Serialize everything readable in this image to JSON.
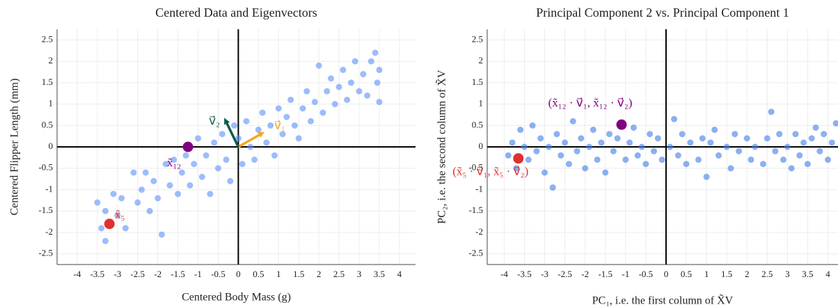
{
  "chart_data": [
    {
      "type": "scatter",
      "title": "Centered Data and Eigenvectors",
      "x_label": "Centered Body Mass (g)",
      "y_label": "Centered Flipper Length (mm)",
      "xlim": [
        -4.5,
        4.4
      ],
      "ylim": [
        -2.75,
        2.75
      ],
      "xticks": [
        -4,
        -3.5,
        -3,
        -2.5,
        -2,
        -1.5,
        -1,
        -0.5,
        0,
        0.5,
        1,
        1.5,
        2,
        2.5,
        3,
        3.5,
        4
      ],
      "yticks": [
        -2.5,
        -2,
        -1.5,
        -1,
        -0.5,
        0,
        0.5,
        1,
        1.5,
        2,
        2.5
      ],
      "grid": true,
      "color": "#5b8ff9",
      "x": [
        -3.5,
        -3.4,
        -3.3,
        -3.3,
        -3.1,
        -3.0,
        -2.9,
        -2.8,
        -2.6,
        -2.5,
        -2.4,
        -2.3,
        -2.2,
        -2.1,
        -2.0,
        -1.9,
        -1.8,
        -1.7,
        -1.6,
        -1.5,
        -1.4,
        -1.3,
        -1.2,
        -1.1,
        -1.0,
        -0.9,
        -0.8,
        -0.7,
        -0.6,
        -0.5,
        -0.4,
        -0.3,
        -0.2,
        -0.1,
        0.0,
        0.1,
        0.2,
        0.3,
        0.4,
        0.5,
        0.6,
        0.7,
        0.8,
        0.9,
        1.0,
        1.1,
        1.2,
        1.3,
        1.4,
        1.5,
        1.6,
        1.7,
        1.8,
        1.9,
        2.0,
        2.1,
        2.2,
        2.3,
        2.4,
        2.5,
        2.6,
        2.7,
        2.8,
        2.9,
        3.0,
        3.1,
        3.2,
        3.3,
        3.4,
        3.45,
        3.5,
        3.5
      ],
      "y": [
        -1.3,
        -1.9,
        -2.2,
        -1.5,
        -1.1,
        -1.6,
        -1.2,
        -1.9,
        -0.6,
        -1.3,
        -1.0,
        -0.6,
        -1.5,
        -0.8,
        -1.2,
        -2.05,
        -0.4,
        -0.9,
        -0.3,
        -1.1,
        -0.6,
        -0.2,
        -0.9,
        -0.4,
        0.2,
        -0.7,
        -0.2,
        -1.1,
        0.1,
        -0.5,
        0.3,
        -0.3,
        -0.8,
        0.5,
        0.2,
        -0.4,
        0.6,
        0.0,
        -0.3,
        0.4,
        0.8,
        0.1,
        0.5,
        -0.2,
        0.9,
        0.3,
        0.7,
        1.1,
        0.5,
        0.2,
        0.9,
        1.3,
        0.6,
        1.05,
        1.9,
        0.8,
        1.3,
        1.6,
        1.0,
        1.4,
        1.8,
        1.1,
        1.5,
        2.0,
        1.3,
        1.7,
        1.2,
        2.0,
        2.2,
        1.5,
        1.05,
        1.8
      ],
      "vectors": [
        {
          "label": "v⃗₁",
          "color": "#f5a623",
          "x": 0.65,
          "y": 0.35
        },
        {
          "label": "v⃗₂",
          "color": "#0d5c4a",
          "x": -0.35,
          "y": 0.68
        }
      ],
      "highlights": [
        {
          "label": "x̃₁₂",
          "color": "#800080",
          "x": -1.25,
          "y": 0.0
        },
        {
          "label": "x̃₅",
          "color": "#e03030",
          "x": -3.2,
          "y": -1.8
        }
      ]
    },
    {
      "type": "scatter",
      "title": "Principal Component 2 vs. Principal Component 1",
      "x_label": "PC₁, i.e. the first column of X̃V",
      "y_label": "PC₂, i.e. the second column of X̃V",
      "xlim": [
        -4.42,
        4.25
      ],
      "ylim": [
        -2.75,
        2.75
      ],
      "xticks": [
        -4,
        -3.5,
        -3,
        -2.5,
        -2,
        -1.5,
        -1,
        -0.5,
        0,
        0.5,
        1,
        1.5,
        2,
        2.5,
        3,
        3.5,
        4
      ],
      "yticks": [
        -2.5,
        -2,
        -1.5,
        -1,
        -0.5,
        0,
        0.5,
        1,
        1.5,
        2,
        2.5
      ],
      "grid": true,
      "color": "#3f7be8",
      "x": [
        -3.9,
        -3.8,
        -3.7,
        -3.6,
        -3.5,
        -3.4,
        -3.3,
        -3.2,
        -3.1,
        -3.0,
        -2.9,
        -2.8,
        -2.7,
        -2.6,
        -2.5,
        -2.4,
        -2.3,
        -2.2,
        -2.1,
        -2.0,
        -1.9,
        -1.8,
        -1.7,
        -1.6,
        -1.5,
        -1.4,
        -1.3,
        -1.2,
        -1.0,
        -0.9,
        -0.8,
        -0.7,
        -0.6,
        -0.5,
        -0.4,
        -0.3,
        -0.2,
        -0.1,
        0.1,
        0.2,
        0.3,
        0.4,
        0.5,
        0.6,
        0.8,
        0.9,
        1.0,
        1.1,
        1.2,
        1.3,
        1.5,
        1.6,
        1.7,
        1.8,
        2.0,
        2.1,
        2.2,
        2.4,
        2.5,
        2.6,
        2.7,
        2.8,
        2.9,
        3.0,
        3.1,
        3.2,
        3.3,
        3.4,
        3.5,
        3.6,
        3.7,
        3.8,
        3.9,
        4.0,
        4.1,
        4.2
      ],
      "y": [
        -0.2,
        0.1,
        -0.5,
        0.4,
        0.0,
        -0.3,
        0.5,
        -0.1,
        0.2,
        -0.6,
        0.0,
        -0.95,
        0.3,
        -0.2,
        0.1,
        -0.4,
        0.6,
        -0.1,
        0.2,
        -0.5,
        0.0,
        0.4,
        -0.3,
        0.1,
        -0.6,
        0.3,
        -0.1,
        0.2,
        -0.3,
        0.1,
        0.45,
        -0.2,
        0.0,
        -0.4,
        0.3,
        -0.1,
        0.2,
        -0.3,
        0.0,
        0.65,
        -0.2,
        0.3,
        -0.4,
        0.1,
        -0.3,
        0.2,
        -0.7,
        0.1,
        0.4,
        -0.2,
        0.0,
        -0.5,
        0.3,
        -0.1,
        0.2,
        -0.3,
        0.0,
        -0.4,
        0.2,
        0.82,
        -0.1,
        0.3,
        -0.3,
        0.0,
        -0.5,
        0.3,
        -0.2,
        0.1,
        -0.4,
        0.2,
        0.45,
        -0.1,
        0.3,
        -0.3,
        0.1,
        0.55
      ],
      "highlights": [
        {
          "label": "(x̃₁₂ · v⃗₁, x̃₁₂ · v⃗₂)",
          "color": "#800080",
          "x": -1.1,
          "y": 0.52
        },
        {
          "label": "(x̃₅ · v⃗₁, x̃₅ · v⃗₂)",
          "color": "#e03030",
          "x": -3.65,
          "y": -0.27
        }
      ]
    }
  ]
}
